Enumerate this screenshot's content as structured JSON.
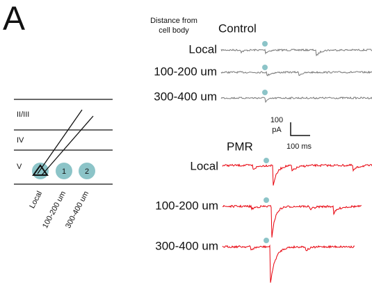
{
  "panel_label": "A",
  "distance_header": [
    "Distance from",
    "cell body"
  ],
  "control": {
    "title": "Control",
    "rows": [
      "Local",
      "100-200 um",
      "300-400 um"
    ]
  },
  "pmr": {
    "title": "PMR",
    "rows": [
      "Local",
      "100-200 um",
      "300-400 um"
    ]
  },
  "scale_bar": {
    "amplitude": [
      "100",
      "pA"
    ],
    "time": "100 ms"
  },
  "diagram": {
    "layers": [
      "II/III",
      "IV",
      "V"
    ],
    "sites": [
      "1",
      "2"
    ],
    "site_labels": [
      "Local",
      "100-200 um",
      "300-400 um"
    ]
  }
}
